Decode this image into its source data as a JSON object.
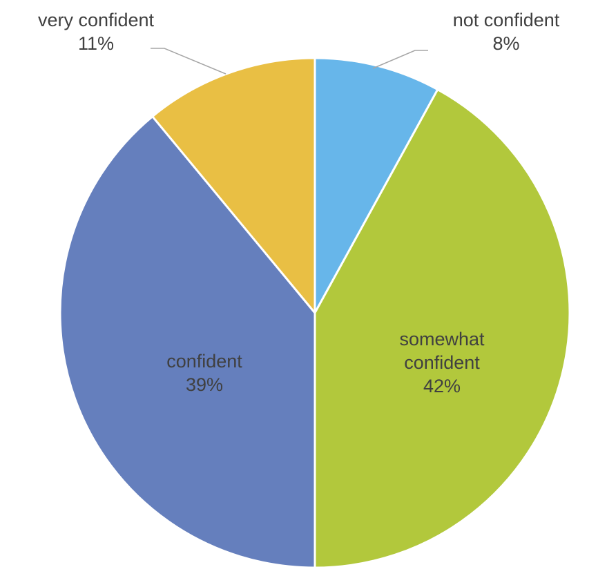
{
  "chart_data": {
    "type": "pie",
    "slices": [
      {
        "name": "not confident",
        "value": 8,
        "label_lines": [
          "not confident"
        ],
        "value_label": "8%",
        "color": "#67b6ea",
        "label_position": "outside-top-right"
      },
      {
        "name": "somewhat confident",
        "value": 42,
        "label_lines": [
          "somewhat",
          "confident"
        ],
        "value_label": "42%",
        "color": "#b2c83c",
        "label_position": "inside"
      },
      {
        "name": "confident",
        "value": 39,
        "label_lines": [
          "confident"
        ],
        "value_label": "39%",
        "color": "#657fbd",
        "label_position": "inside"
      },
      {
        "name": "very confident",
        "value": 11,
        "label_lines": [
          "very confident"
        ],
        "value_label": "11%",
        "color": "#e9bf44",
        "label_position": "outside-top-left"
      }
    ],
    "start_angle": "12 o'clock",
    "direction": "clockwise",
    "legend": "none",
    "label_color": "#404040",
    "leader_line_color": "#a6a6a6"
  }
}
